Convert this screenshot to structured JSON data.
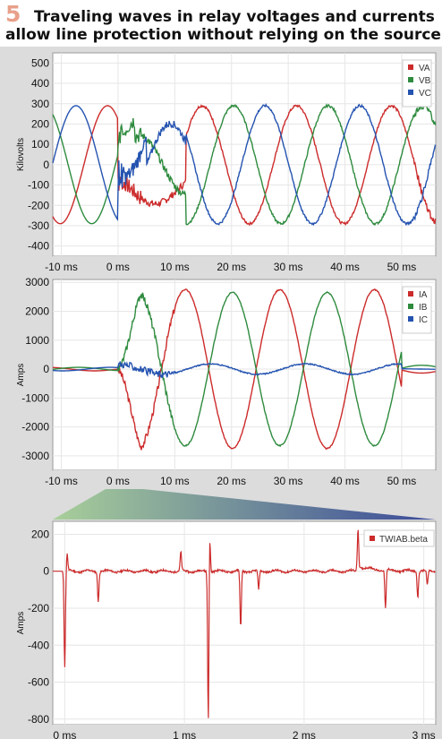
{
  "header": {
    "number": "5",
    "line1": "Traveling waves in relay voltages and currents",
    "line2": "allow line protection without relying on the sources"
  },
  "chart_data": [
    {
      "type": "line",
      "ylabel": "Kilovolts",
      "x_tick_labels": [
        "-10 ms",
        "0 ms",
        "10 ms",
        "20 ms",
        "30 ms",
        "40 ms",
        "50 ms"
      ],
      "xlim": [
        -11.5,
        56
      ],
      "ylim": [
        -450,
        550
      ],
      "y_ticks": [
        500,
        400,
        300,
        200,
        100,
        0,
        -100,
        -200,
        -300,
        -400
      ],
      "grid": true,
      "legend_position": "top-right",
      "series": [
        {
          "name": "VA",
          "color": "#cc2b2b",
          "phase_deg": 0,
          "amplitude": 290
        },
        {
          "name": "VB",
          "color": "#2e8b3e",
          "phase_deg": -120,
          "amplitude": 290
        },
        {
          "name": "VC",
          "color": "#2453b0",
          "phase_deg": 120,
          "amplitude": 290
        }
      ]
    },
    {
      "type": "line",
      "ylabel": "Amps",
      "x_tick_labels": [
        "-10 ms",
        "0 ms",
        "10 ms",
        "20 ms",
        "30 ms",
        "40 ms",
        "50 ms"
      ],
      "xlim": [
        -11.5,
        56
      ],
      "ylim": [
        -3500,
        3100
      ],
      "y_ticks": [
        3000,
        2000,
        1000,
        0,
        -1000,
        -2000,
        -3000
      ],
      "grid": true,
      "legend_position": "top-right",
      "series": [
        {
          "name": "IA",
          "color": "#cc2b2b",
          "prefault_amplitude": 60,
          "fault_amplitude": 2750
        },
        {
          "name": "IB",
          "color": "#2e8b3e",
          "prefault_amplitude": 60,
          "fault_amplitude": 2650
        },
        {
          "name": "IC",
          "color": "#2453b0",
          "prefault_amplitude": 60,
          "fault_amplitude": 180
        }
      ]
    },
    {
      "type": "line",
      "ylabel": "Amps",
      "x_tick_labels": [
        "0 ms",
        "1 ms",
        "2 ms",
        "3 ms"
      ],
      "xlim": [
        -0.1,
        3.1
      ],
      "ylim": [
        -830,
        270
      ],
      "y_ticks": [
        200,
        0,
        -200,
        -400,
        -600,
        -800
      ],
      "grid": true,
      "legend_position": "top-right",
      "series": [
        {
          "name": "TWIAB.beta",
          "color": "#cc2b2b",
          "spikes": [
            {
              "t": 0.0,
              "v": -520
            },
            {
              "t": 0.02,
              "v": 90
            },
            {
              "t": 0.28,
              "v": -160
            },
            {
              "t": 0.97,
              "v": 100
            },
            {
              "t": 1.2,
              "v": -840
            },
            {
              "t": 1.21,
              "v": 260
            },
            {
              "t": 1.47,
              "v": -310
            },
            {
              "t": 1.62,
              "v": -100
            },
            {
              "t": 2.45,
              "v": 220
            },
            {
              "t": 2.68,
              "v": -210
            },
            {
              "t": 2.95,
              "v": -140
            },
            {
              "t": 3.03,
              "v": -80
            }
          ]
        }
      ]
    }
  ]
}
